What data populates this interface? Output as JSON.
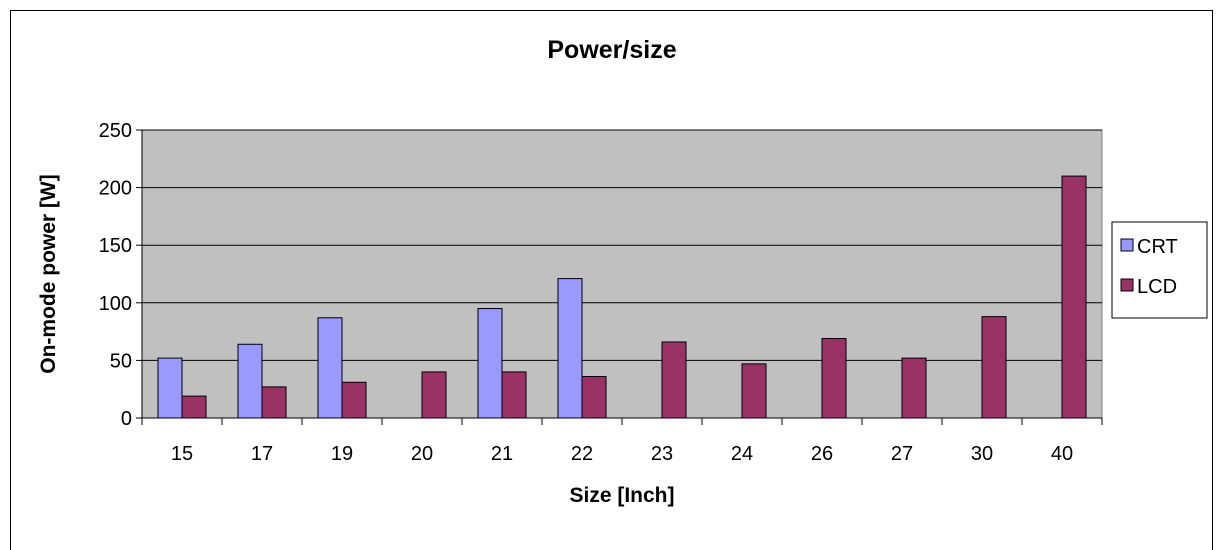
{
  "chart_data": {
    "type": "bar",
    "title": "Power/size",
    "xlabel": "Size [Inch]",
    "ylabel": "On-mode power [W]",
    "categories": [
      "15",
      "17",
      "19",
      "20",
      "21",
      "22",
      "23",
      "24",
      "26",
      "27",
      "30",
      "40"
    ],
    "series": [
      {
        "name": "CRT",
        "color": "#9999ff",
        "values": [
          52,
          64,
          87,
          null,
          95,
          121,
          null,
          null,
          null,
          null,
          null,
          null
        ]
      },
      {
        "name": "LCD",
        "color": "#993366",
        "values": [
          19,
          27,
          31,
          40,
          40,
          36,
          66,
          47,
          69,
          52,
          88,
          210
        ]
      }
    ],
    "ylim": [
      0,
      250
    ],
    "yticks": [
      0,
      50,
      100,
      150,
      200,
      250
    ],
    "grid": true,
    "plot_background": "#c0c0c0",
    "legend_position": "right"
  }
}
